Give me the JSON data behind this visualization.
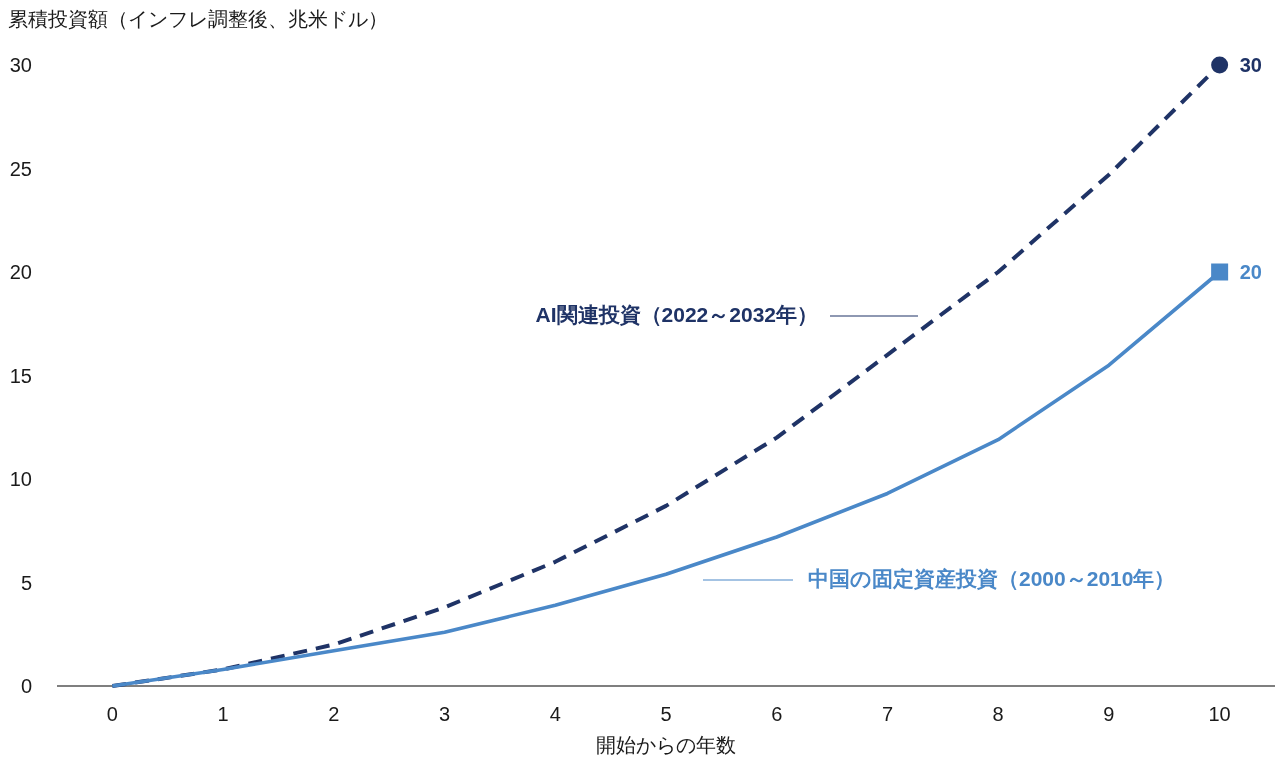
{
  "chart_data": {
    "type": "line",
    "ylabel": "累積投資額（インフレ調整後、兆米ドル）",
    "xlabel": "開始からの年数",
    "x": [
      0,
      1,
      2,
      3,
      4,
      5,
      6,
      7,
      8,
      9,
      10
    ],
    "series": [
      {
        "name": "AI関連投資（2022～2032年）",
        "color": "#1f3366",
        "line_style": "dashed",
        "values": [
          0,
          0.8,
          2.0,
          3.8,
          6.0,
          8.7,
          12.0,
          16.0,
          20.0,
          24.7,
          30
        ],
        "value_labels": [
          null,
          null,
          null,
          null,
          null,
          null,
          null,
          null,
          null,
          null,
          "30"
        ]
      },
      {
        "name": "中国の固定資産投資（2000～2010年）",
        "color": "#4a88c8",
        "line_style": "solid",
        "values": [
          0,
          0.8,
          1.7,
          2.6,
          3.9,
          5.4,
          7.2,
          9.3,
          11.9,
          15.5,
          20
        ],
        "value_labels": [
          null,
          null,
          null,
          null,
          null,
          null,
          null,
          null,
          null,
          null,
          "20"
        ]
      }
    ],
    "xlim": [
      -0.5,
      10.5
    ],
    "ylim": [
      0,
      30
    ],
    "xticks": [
      0,
      1,
      2,
      3,
      4,
      5,
      6,
      7,
      8,
      9,
      10
    ],
    "yticks": [
      0,
      5,
      10,
      15,
      20,
      25,
      30
    ]
  }
}
